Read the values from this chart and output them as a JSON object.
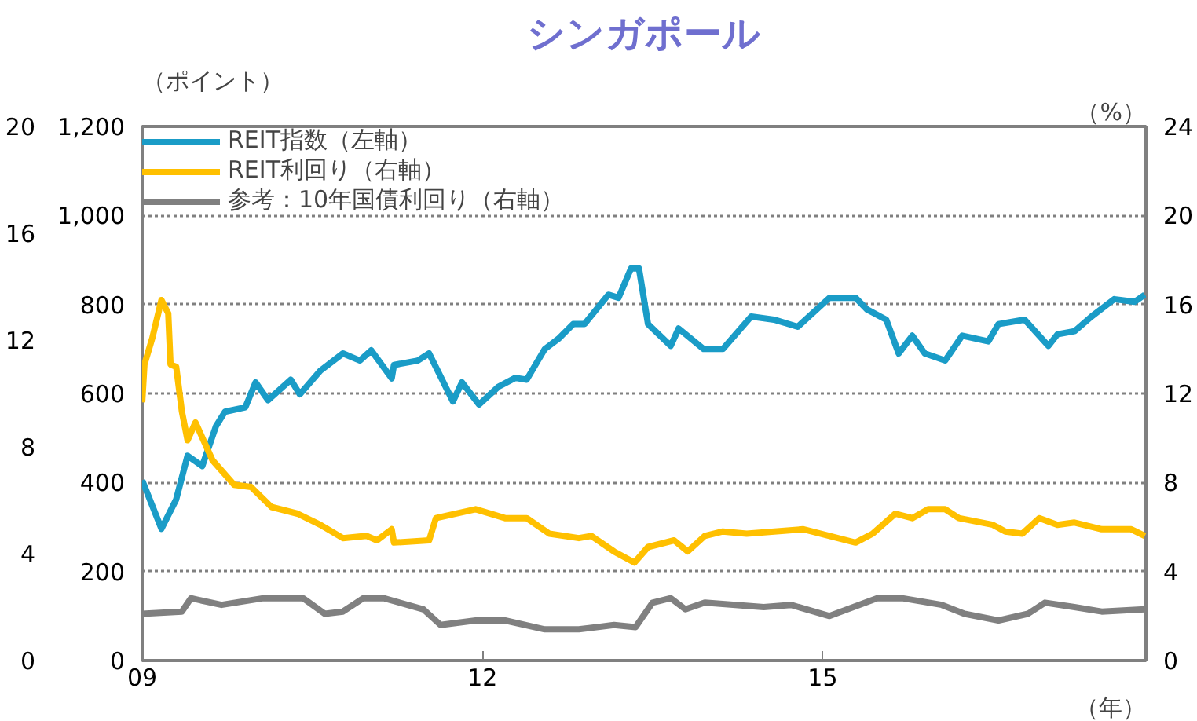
{
  "chart_data": {
    "type": "line",
    "title": "シンガポール",
    "ylabel": "（ポイント）",
    "y2label": "（%）",
    "xlabel": "（年）",
    "xlim": [
      2009,
      2017.85
    ],
    "xticks": [
      {
        "value": 2009,
        "label": "09"
      },
      {
        "value": 2012,
        "label": "12"
      },
      {
        "value": 2015,
        "label": "15"
      }
    ],
    "ylim": [
      0,
      1200
    ],
    "yticks": [
      0,
      200,
      400,
      600,
      800,
      {
        "value": 1000,
        "label": "1,000"
      },
      {
        "value": 1200,
        "label": "1,200"
      }
    ],
    "y2lim": [
      0,
      24
    ],
    "y2ticks": [
      0,
      4,
      8,
      12,
      16,
      20,
      24
    ],
    "y3lim": [
      0,
      20
    ],
    "y3ticks": [
      0,
      4,
      8,
      12,
      16,
      20
    ],
    "grid": "y",
    "legend": "top left",
    "line_style": "solid",
    "series": [
      {
        "name": "REIT指数（左軸）",
        "color": "#1a9cc7",
        "x": [
          2009.0,
          2009.17,
          2009.3,
          2009.4,
          2009.53,
          2009.65,
          2009.73,
          2009.91,
          2010.0,
          2010.11,
          2010.31,
          2010.39,
          2010.57,
          2010.77,
          2010.92,
          2011.02,
          2011.2,
          2011.22,
          2011.43,
          2011.53,
          2011.74,
          2011.82,
          2011.97,
          2012.14,
          2012.29,
          2012.39,
          2012.55,
          2012.67,
          2012.8,
          2012.9,
          2013.11,
          2013.2,
          2013.31,
          2013.38,
          2013.46,
          2013.66,
          2013.73,
          2013.95,
          2014.12,
          2014.37,
          2014.57,
          2014.78,
          2015.06,
          2015.29,
          2015.39,
          2015.56,
          2015.67,
          2015.79,
          2015.9,
          2016.08,
          2016.23,
          2016.46,
          2016.55,
          2016.78,
          2016.99,
          2017.07,
          2017.22,
          2017.37,
          2017.57,
          2017.75,
          2017.84
        ],
        "values": [
          405,
          296,
          362,
          460,
          437,
          526,
          559,
          569,
          625,
          585,
          631,
          598,
          651,
          690,
          674,
          697,
          634,
          664,
          674,
          690,
          582,
          625,
          575,
          615,
          635,
          631,
          700,
          723,
          756,
          756,
          822,
          815,
          881,
          881,
          756,
          707,
          746,
          700,
          700,
          773,
          766,
          750,
          815,
          815,
          789,
          766,
          690,
          730,
          690,
          674,
          730,
          717,
          756,
          766,
          707,
          733,
          740,
          773,
          812,
          806,
          822
        ]
      },
      {
        "name": "REIT利回り（右軸）",
        "color": "#ffc000",
        "axis": "y2",
        "x": [
          2009.0,
          2009.02,
          2009.09,
          2009.17,
          2009.23,
          2009.25,
          2009.3,
          2009.35,
          2009.4,
          2009.47,
          2009.62,
          2009.81,
          2009.96,
          2010.14,
          2010.37,
          2010.57,
          2010.77,
          2010.98,
          2011.07,
          2011.2,
          2011.22,
          2011.53,
          2011.59,
          2011.94,
          2012.2,
          2012.39,
          2012.59,
          2012.85,
          2012.96,
          2013.16,
          2013.34,
          2013.46,
          2013.69,
          2013.81,
          2013.96,
          2014.12,
          2014.33,
          2014.83,
          2015.06,
          2015.29,
          2015.44,
          2015.64,
          2015.79,
          2015.93,
          2016.08,
          2016.2,
          2016.5,
          2016.61,
          2016.76,
          2016.91,
          2017.07,
          2017.22,
          2017.46,
          2017.72,
          2017.84
        ],
        "values": [
          11.6,
          13.3,
          14.5,
          16.2,
          15.6,
          13.3,
          13.2,
          11.2,
          9.9,
          10.7,
          9.0,
          7.9,
          7.8,
          6.9,
          6.6,
          6.1,
          5.5,
          5.6,
          5.4,
          5.9,
          5.3,
          5.4,
          6.4,
          6.8,
          6.4,
          6.4,
          5.7,
          5.5,
          5.6,
          4.9,
          4.4,
          5.1,
          5.4,
          4.9,
          5.6,
          5.8,
          5.7,
          5.9,
          5.6,
          5.3,
          5.7,
          6.6,
          6.4,
          6.8,
          6.8,
          6.4,
          6.1,
          5.8,
          5.7,
          6.4,
          6.1,
          6.2,
          5.9,
          5.9,
          5.6
        ]
      },
      {
        "name": "参考：10年国債利回り（右軸）",
        "color": "#808080",
        "axis": "y2",
        "x": [
          2009.0,
          2009.35,
          2009.43,
          2009.7,
          2010.07,
          2010.26,
          2010.42,
          2010.61,
          2010.77,
          2010.95,
          2011.13,
          2011.48,
          2011.63,
          2011.94,
          2012.2,
          2012.55,
          2012.85,
          2013.16,
          2013.35,
          2013.5,
          2013.66,
          2013.79,
          2013.96,
          2014.48,
          2014.72,
          2015.06,
          2015.48,
          2015.7,
          2016.05,
          2016.25,
          2016.55,
          2016.81,
          2016.96,
          2017.22,
          2017.46,
          2017.84
        ],
        "values": [
          2.1,
          2.2,
          2.8,
          2.5,
          2.8,
          2.8,
          2.8,
          2.1,
          2.2,
          2.8,
          2.8,
          2.3,
          1.6,
          1.8,
          1.8,
          1.4,
          1.4,
          1.6,
          1.5,
          2.6,
          2.8,
          2.3,
          2.6,
          2.4,
          2.5,
          2.0,
          2.8,
          2.8,
          2.5,
          2.1,
          1.8,
          2.1,
          2.6,
          2.4,
          2.2,
          2.3
        ]
      }
    ]
  }
}
